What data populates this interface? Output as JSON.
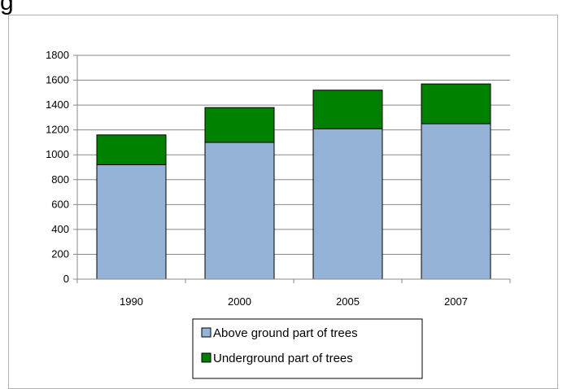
{
  "header": {
    "title_fragment": "g"
  },
  "chart_data": {
    "type": "bar",
    "stacked": true,
    "categories": [
      "1990",
      "2000",
      "2005",
      "2007"
    ],
    "series": [
      {
        "name": "Above ground part of trees",
        "values": [
          920,
          1100,
          1210,
          1250
        ],
        "color": "#95b3d7"
      },
      {
        "name": "Underground part of trees",
        "values": [
          240,
          280,
          310,
          320
        ],
        "color": "#008000"
      }
    ],
    "ylim": [
      0,
      1800
    ],
    "yticks": [
      "0",
      "200",
      "400",
      "600",
      "800",
      "1000",
      "1200",
      "1400",
      "1600",
      "1800"
    ],
    "grid": true,
    "legend_position": "bottom"
  }
}
